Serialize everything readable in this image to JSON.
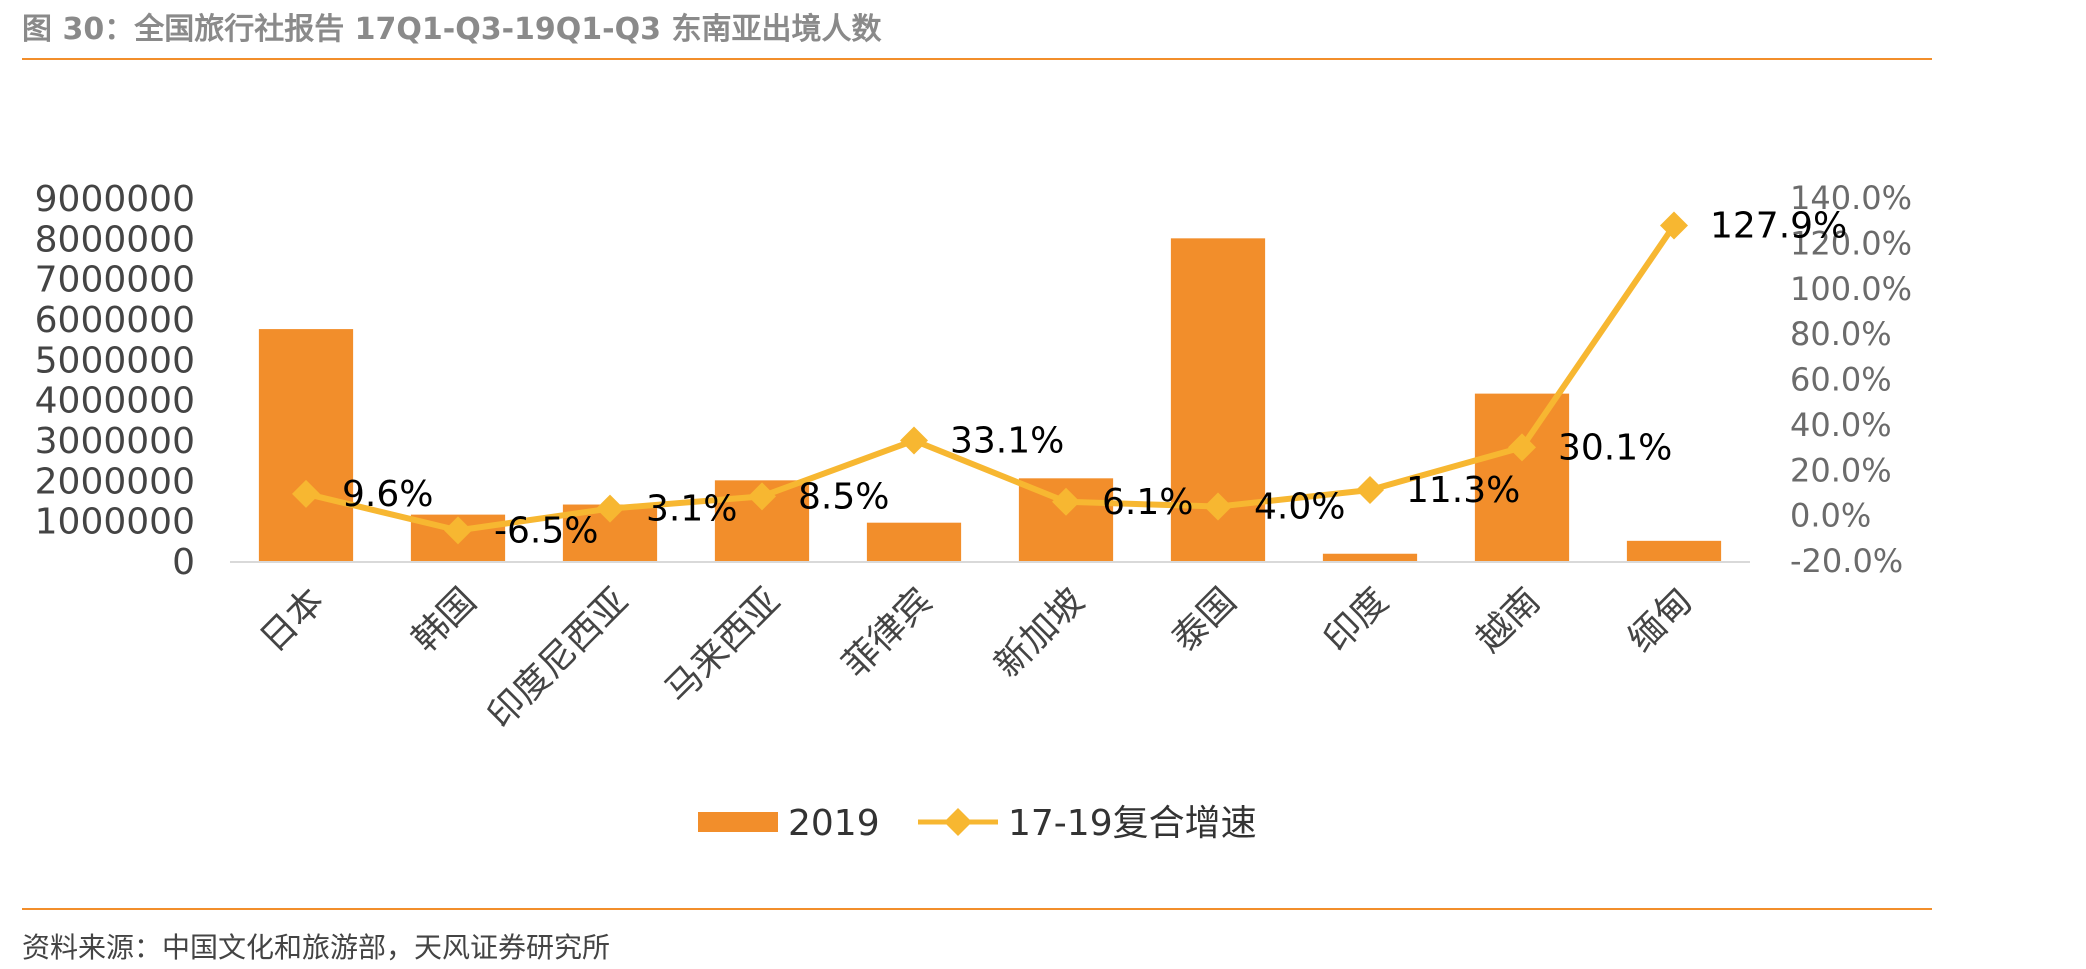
{
  "header": {
    "title": "图 30：全国旅行社报告 17Q1-Q3-19Q1-Q3 东南亚出境人数"
  },
  "footer": {
    "source": "资料来源：中国文化和旅游部，天风证券研究所"
  },
  "colors": {
    "bar": "#f28e2b",
    "line": "#f7b731",
    "rule": "#f28e2b"
  },
  "chart_data": {
    "type": "bar",
    "title": "",
    "categories": [
      "日本",
      "韩国",
      "印度尼西亚",
      "马来西亚",
      "菲律宾",
      "新加坡",
      "泰国",
      "印度",
      "越南",
      "缅甸"
    ],
    "series": [
      {
        "name": "2019",
        "type": "bar",
        "axis": "left",
        "values": [
          5750000,
          1150000,
          1400000,
          2000000,
          950000,
          2050000,
          8000000,
          180000,
          4150000,
          500000
        ]
      },
      {
        "name": "17-19复合增速",
        "type": "line",
        "axis": "right",
        "marker": "diamond",
        "values": [
          9.6,
          -6.5,
          3.1,
          8.5,
          33.1,
          6.1,
          4.0,
          11.3,
          30.1,
          127.9
        ],
        "labels": [
          "9.6%",
          "-6.5%",
          "3.1%",
          "8.5%",
          "33.1%",
          "6.1%",
          "4.0%",
          "11.3%",
          "30.1%",
          "127.9%"
        ]
      }
    ],
    "left_axis": {
      "ylim": [
        0,
        9000000
      ],
      "ticks": [
        "0",
        "1000000",
        "2000000",
        "3000000",
        "4000000",
        "5000000",
        "6000000",
        "7000000",
        "8000000",
        "9000000"
      ]
    },
    "right_axis": {
      "ylim": [
        -20,
        140
      ],
      "ticks": [
        "-20.0%",
        "0.0%",
        "20.0%",
        "40.0%",
        "60.0%",
        "80.0%",
        "100.0%",
        "120.0%",
        "140.0%"
      ]
    },
    "grid": false,
    "legend": "bottom"
  }
}
